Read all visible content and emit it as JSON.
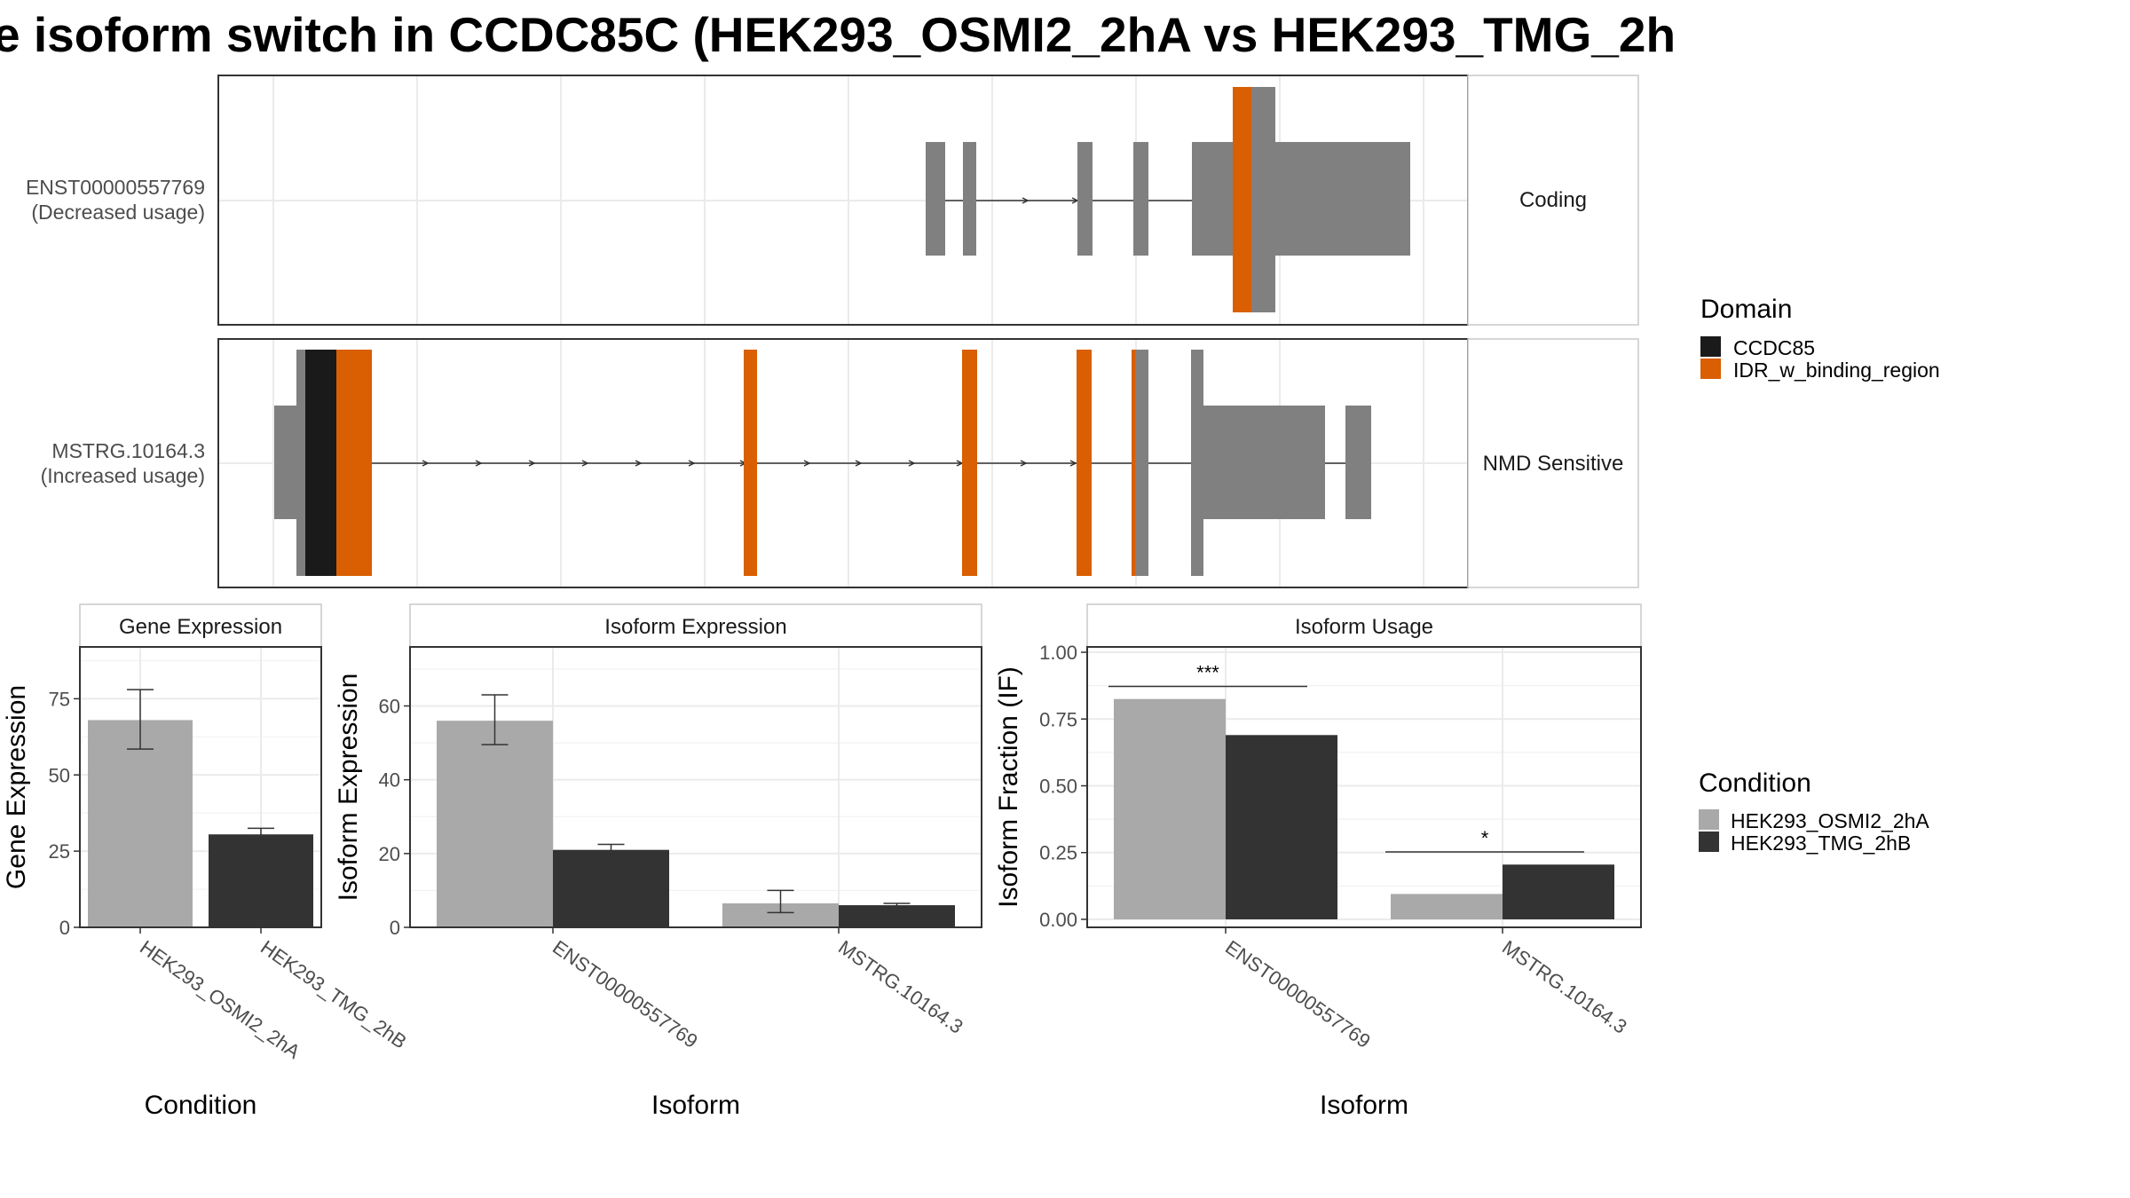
{
  "title": "e isoform switch in CCDC85C (HEK293_OSMI2_2hA vs HEK293_TMG_2h",
  "colors": {
    "exon": "#808080",
    "ccdc85": "#1a1a1a",
    "idr": "#d95f02",
    "cond_a": "#a9a9a9",
    "cond_b": "#333333",
    "grid": "#ebebeb",
    "panel_border": "#333333",
    "strip_border": "#c8c8c8"
  },
  "transcripts": [
    {
      "id": "ENST00000557769",
      "usage_label": "(Decreased usage)",
      "category": "Coding"
    },
    {
      "id": "MSTRG.10164.3",
      "usage_label": "(Increased usage)",
      "category": "NMD Sensitive"
    }
  ],
  "domain_legend": {
    "title": "Domain",
    "items": [
      {
        "label": "CCDC85",
        "color": "#1a1a1a"
      },
      {
        "label": "IDR_w_binding_region",
        "color": "#d95f02"
      }
    ]
  },
  "condition_legend": {
    "title": "Condition",
    "items": [
      {
        "label": "HEK293_OSMI2_2hA",
        "color": "#a9a9a9"
      },
      {
        "label": "HEK293_TMG_2hB",
        "color": "#333333"
      }
    ]
  },
  "chart_data": [
    {
      "type": "bar",
      "title": "Gene Expression",
      "xlabel": "Condition",
      "ylabel": "Gene Expression",
      "categories": [
        "HEK293_OSMI2_2hA",
        "HEK293_TMG_2hB"
      ],
      "values": [
        68,
        30.5
      ],
      "errors": [
        [
          58.5,
          78
        ],
        [
          29,
          32.5
        ]
      ],
      "ylim": [
        0,
        92
      ],
      "yticks": [
        0,
        25,
        50,
        75
      ],
      "ytick_labels": [
        "0",
        "25",
        "50",
        "75"
      ]
    },
    {
      "type": "bar",
      "title": "Isoform Expression",
      "xlabel": "Isoform",
      "ylabel": "Isoform Expression",
      "categories": [
        "ENST00000557769",
        "MSTRG.10164.3"
      ],
      "series": [
        {
          "values": [
            56,
            6.5
          ],
          "errors": [
            [
              49.5,
              63
            ],
            [
              4,
              10
            ]
          ]
        },
        {
          "values": [
            21,
            6
          ],
          "errors": [
            [
              20,
              22.5
            ],
            [
              5.5,
              6.5
            ]
          ]
        }
      ],
      "ylim": [
        0,
        76
      ],
      "yticks": [
        0,
        20,
        40,
        60
      ],
      "ytick_labels": [
        "0",
        "20",
        "40",
        "60"
      ]
    },
    {
      "type": "bar",
      "title": "Isoform Usage",
      "xlabel": "Isoform",
      "ylabel": "Isoform Fraction (IF)",
      "categories": [
        "ENST00000557769",
        "MSTRG.10164.3"
      ],
      "series": [
        {
          "values": [
            0.825,
            0.095
          ]
        },
        {
          "values": [
            0.69,
            0.205
          ]
        }
      ],
      "significance": [
        "***",
        "*"
      ],
      "ylim": [
        -0.03,
        1.02
      ],
      "yticks": [
        0,
        0.25,
        0.5,
        0.75,
        1
      ],
      "ytick_labels": [
        "0.00",
        "0.25",
        "0.50",
        "0.75",
        "1.00"
      ]
    }
  ]
}
